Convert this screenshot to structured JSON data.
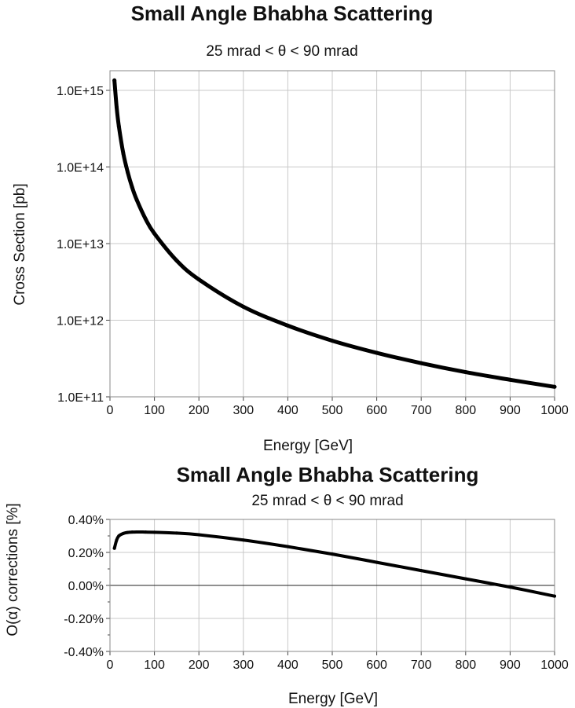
{
  "chart_data": [
    {
      "type": "line",
      "title": "Small Angle Bhabha Scattering",
      "subtitle": "25 mrad < θ < 90 mrad",
      "xlabel": "Energy [GeV]",
      "ylabel": "Cross Section [pb]",
      "xlim": [
        0,
        1000
      ],
      "ylim": [
        100000000000.0,
        2000000000000000.0
      ],
      "yscale": "log",
      "grid": true,
      "x_ticks": [
        "0",
        "100",
        "200",
        "300",
        "400",
        "500",
        "600",
        "700",
        "800",
        "900",
        "1000"
      ],
      "y_ticks": [
        {
          "value": 100000000000.0,
          "label": "1.0E+11"
        },
        {
          "value": 1000000000000.0,
          "label": "1.0E+12"
        },
        {
          "value": 10000000000000.0,
          "label": "1.0E+13"
        },
        {
          "value": 100000000000000.0,
          "label": "1.0E+14"
        },
        {
          "value": 1000000000000000.0,
          "label": "1.0E+15"
        }
      ],
      "series": [
        {
          "color": "#000000",
          "x": [
            10,
            15,
            20,
            30,
            40,
            50,
            60,
            80,
            100,
            150,
            200,
            300,
            400,
            500,
            600,
            700,
            800,
            900,
            1000
          ],
          "y": [
            1350000000000000.0,
            600000000000000.0,
            340000000000000.0,
            150000000000000.0,
            85000000000000.0,
            54000000000000.0,
            37500000000000.0,
            21000000000000.0,
            13500000000000.0,
            6000000000000.0,
            3400000000000.0,
            1500000000000.0,
            850000000000.0,
            540000000000.0,
            375000000000.0,
            275000000000.0,
            210000000000.0,
            167000000000.0,
            135000000000.0
          ]
        }
      ]
    },
    {
      "type": "line",
      "title": "Small Angle Bhabha Scattering",
      "subtitle": "25 mrad < θ < 90 mrad",
      "xlabel": "Energy [GeV]",
      "ylabel": "O(α) corrections [%]",
      "xlim": [
        0,
        1000
      ],
      "ylim": [
        -0.4,
        0.4
      ],
      "grid": true,
      "x_ticks": [
        "0",
        "100",
        "200",
        "300",
        "400",
        "500",
        "600",
        "700",
        "800",
        "900",
        "1000"
      ],
      "y_ticks": [
        {
          "value": 0.4,
          "label": "0.40%"
        },
        {
          "value": 0.2,
          "label": "0.20%"
        },
        {
          "value": 0.0,
          "label": "0.00%"
        },
        {
          "value": -0.2,
          "label": "-0.20%"
        },
        {
          "value": -0.4,
          "label": "-0.40%"
        }
      ],
      "series": [
        {
          "color": "#000000",
          "x": [
            10,
            15,
            20,
            30,
            40,
            50,
            60,
            70,
            80,
            100,
            150,
            200,
            300,
            400,
            500,
            600,
            700,
            800,
            900,
            1000
          ],
          "y": [
            0.225,
            0.275,
            0.3,
            0.315,
            0.321,
            0.323,
            0.324,
            0.324,
            0.323,
            0.322,
            0.317,
            0.307,
            0.275,
            0.235,
            0.19,
            0.14,
            0.09,
            0.04,
            -0.01,
            -0.065
          ]
        }
      ]
    }
  ]
}
